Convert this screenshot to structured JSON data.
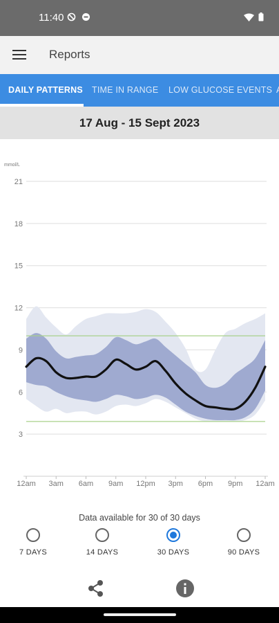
{
  "status_bar": {
    "time": "11:40",
    "left_icons": [
      "do-not-disturb-icon",
      "sync-icon"
    ],
    "right_icons": [
      "wifi-icon",
      "battery-icon"
    ]
  },
  "app_bar": {
    "title": "Reports",
    "menu_icon": "hamburger-menu-icon"
  },
  "tabs": [
    {
      "label": "DAILY PATTERNS",
      "active": true
    },
    {
      "label": "TIME IN RANGE",
      "active": false
    },
    {
      "label": "LOW GLUCOSE EVENTS",
      "active": false
    },
    {
      "label": "A",
      "active": false
    }
  ],
  "date_range": "17 Aug - 15 Sept 2023",
  "chart_data": {
    "type": "area",
    "ylabel": "mmol/L",
    "ylim": [
      0,
      21
    ],
    "y_ticks": [
      "21",
      "18",
      "15",
      "12",
      "9",
      "6",
      "3"
    ],
    "x_ticks": [
      "12am",
      "3am",
      "6am",
      "9am",
      "12pm",
      "3pm",
      "6pm",
      "9pm",
      "12am"
    ],
    "x_hours": [
      0,
      1,
      2,
      3,
      4,
      5,
      6,
      7,
      8,
      9,
      10,
      11,
      12,
      13,
      14,
      15,
      16,
      17,
      18,
      19,
      20,
      21,
      22,
      23,
      24
    ],
    "target_range": {
      "low": 3.9,
      "high": 10.0
    },
    "series": [
      {
        "name": "median",
        "values": [
          7.8,
          8.4,
          8.2,
          7.4,
          7.0,
          7.0,
          7.1,
          7.1,
          7.6,
          8.3,
          8.0,
          7.6,
          7.8,
          8.2,
          7.5,
          6.6,
          5.9,
          5.4,
          5.0,
          4.9,
          4.8,
          4.8,
          5.3,
          6.3,
          7.8
        ]
      },
      {
        "name": "25-75 percentile",
        "low": [
          6.7,
          6.5,
          6.4,
          6.0,
          5.7,
          5.5,
          5.4,
          5.3,
          5.5,
          5.8,
          5.7,
          5.5,
          5.6,
          5.8,
          5.6,
          5.1,
          4.6,
          4.3,
          4.1,
          4.0,
          4.0,
          4.0,
          4.2,
          4.8,
          6.1
        ],
        "high": [
          9.8,
          10.2,
          9.8,
          8.9,
          8.4,
          8.5,
          8.6,
          8.7,
          9.2,
          9.9,
          9.7,
          9.4,
          9.6,
          9.8,
          9.2,
          8.6,
          8.0,
          7.4,
          6.5,
          6.3,
          6.6,
          7.3,
          7.8,
          8.4,
          9.7
        ]
      },
      {
        "name": "10-90 percentile",
        "low": [
          5.5,
          5.0,
          4.6,
          4.8,
          4.5,
          4.6,
          4.6,
          4.4,
          4.6,
          5.0,
          5.1,
          5.0,
          5.2,
          5.5,
          5.3,
          4.9,
          4.5,
          4.1,
          3.9,
          3.9,
          3.9,
          3.9,
          4.0,
          4.4,
          5.4
        ],
        "high": [
          11.2,
          12.1,
          11.3,
          10.6,
          10.1,
          10.7,
          11.2,
          11.4,
          11.6,
          11.6,
          11.6,
          11.7,
          11.9,
          11.7,
          11.0,
          10.2,
          9.1,
          7.6,
          7.6,
          9.0,
          10.2,
          10.5,
          10.9,
          11.2,
          11.6
        ]
      }
    ],
    "colors": {
      "median_line": "#111111",
      "band_inner": "#9faad0",
      "band_outer": "#e3e7f1",
      "target_line": "#a8d08a",
      "grid_line": "#dddddd",
      "tick_text": "#777777"
    }
  },
  "availability_text": "Data available for 30 of 30 days",
  "period_options": [
    {
      "label": "7 DAYS",
      "selected": false
    },
    {
      "label": "14 DAYS",
      "selected": false
    },
    {
      "label": "30 DAYS",
      "selected": true
    },
    {
      "label": "90 DAYS",
      "selected": false
    }
  ],
  "actions": {
    "share_icon": "share-icon",
    "info_icon": "info-icon"
  }
}
